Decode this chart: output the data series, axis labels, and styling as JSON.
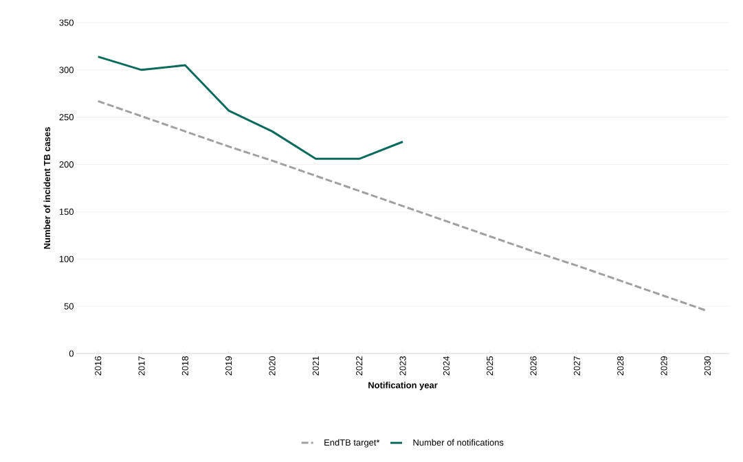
{
  "chart_data": {
    "type": "line",
    "xlabel": "Notification year",
    "ylabel": "Number of incident TB cases",
    "categories": [
      "2016",
      "2017",
      "2018",
      "2019",
      "2020",
      "2021",
      "2022",
      "2023",
      "2024",
      "2025",
      "2026",
      "2027",
      "2028",
      "2029",
      "2030"
    ],
    "series": [
      {
        "name": "EndTB target*",
        "color": "#a0a0a0",
        "line_style": "dashed",
        "values": [
          267,
          251,
          235,
          219,
          204,
          188,
          172,
          156,
          140,
          124,
          108,
          93,
          77,
          61,
          45
        ]
      },
      {
        "name": "Number of notifications",
        "color": "#0b6b5a",
        "line_style": "solid",
        "values": [
          314,
          300,
          305,
          257,
          235,
          206,
          206,
          224,
          null,
          null,
          null,
          null,
          null,
          null,
          null
        ]
      }
    ],
    "ylim": [
      0,
      350
    ],
    "yticks": [
      0,
      50,
      100,
      150,
      200,
      250,
      300,
      350
    ],
    "grid": "y",
    "legend": "bottom",
    "marker": "none"
  }
}
